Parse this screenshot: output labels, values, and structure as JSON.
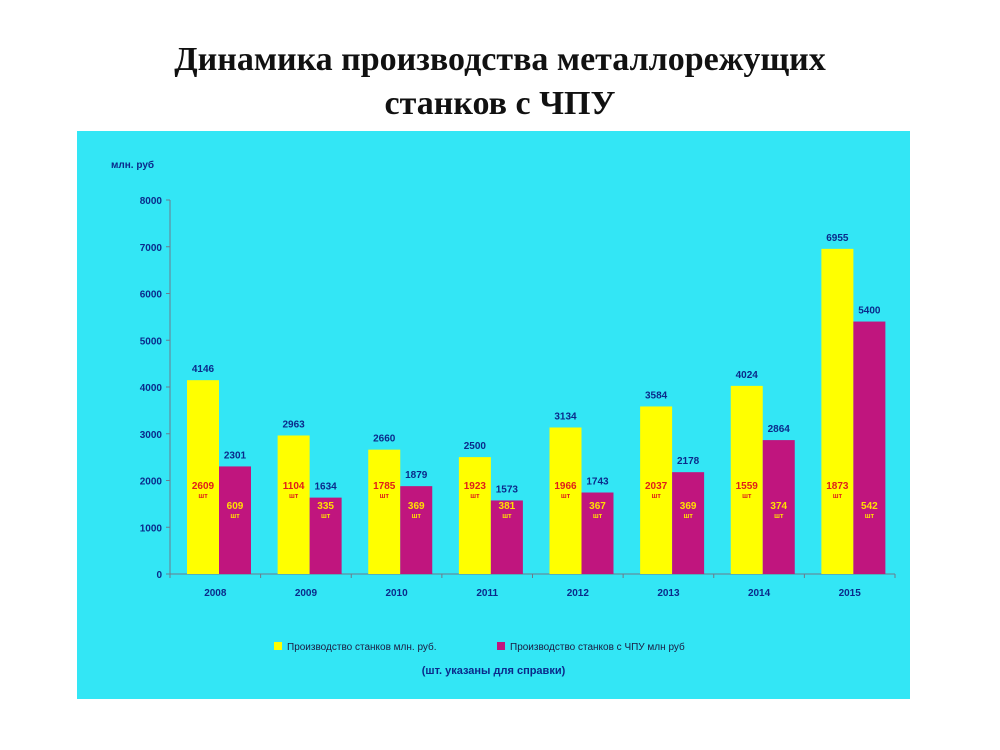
{
  "title_line1": "Динамика производства металлорежущих",
  "title_line2": "станков с ЧПУ",
  "colors": {
    "background": "#33E6F5",
    "series1": "#FFFF00",
    "series2": "#C0157E",
    "axis_text": "#0b2a8a",
    "count_text": "#E0201A"
  },
  "chart_data": {
    "type": "bar",
    "ylabel": "млн. руб",
    "ylim": [
      0,
      8000
    ],
    "yticks": [
      0,
      1000,
      2000,
      3000,
      4000,
      5000,
      6000,
      7000,
      8000
    ],
    "categories": [
      "2008",
      "2009",
      "2010",
      "2011",
      "2012",
      "2013",
      "2014",
      "2015"
    ],
    "series": [
      {
        "name": "Производство станков млн. руб.",
        "values": [
          4146,
          2963,
          2660,
          2500,
          3134,
          3584,
          4024,
          6955
        ],
        "counts": [
          "2609",
          "1104",
          "1785",
          "1923",
          "1966",
          "2037",
          "1559",
          "1873"
        ]
      },
      {
        "name": "Производство станков с ЧПУ млн руб",
        "values": [
          2301,
          1634,
          1879,
          1573,
          1743,
          2178,
          2864,
          5400
        ],
        "counts": [
          "609",
          "335",
          "369",
          "381",
          "367",
          "369",
          "374",
          "542"
        ]
      }
    ],
    "count_unit": "шт",
    "grid": false,
    "legend": "bottom"
  },
  "note": "(шт. указаны для справки)"
}
